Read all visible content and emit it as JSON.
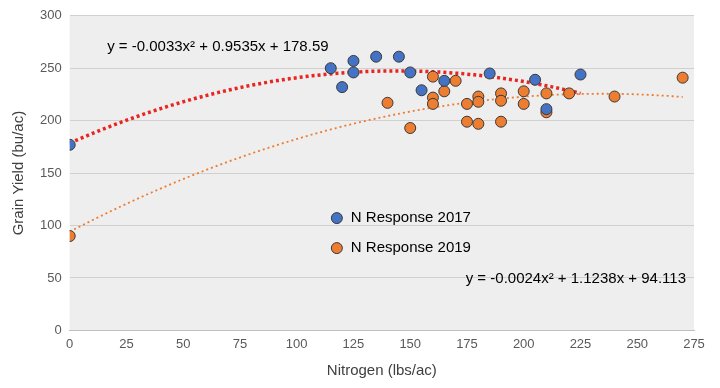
{
  "chart_data": {
    "type": "scatter",
    "x_label": "Nitrogen (lbs/ac)",
    "y_label": "Grain Yield (bu/ac)",
    "xlim": [
      0,
      275
    ],
    "xticks": [
      0,
      25,
      50,
      75,
      100,
      125,
      150,
      175,
      200,
      225,
      250,
      275
    ],
    "ylim": [
      0,
      300
    ],
    "yticks": [
      0,
      50,
      100,
      150,
      200,
      250,
      300
    ],
    "grid": "y",
    "legend": "center",
    "series": [
      {
        "name": "N Response 2017",
        "color": "#4472c4",
        "marker": "circle",
        "x": [
          0,
          115,
          120,
          125,
          125,
          135,
          145,
          150,
          155,
          165,
          185,
          205,
          210,
          225
        ],
        "values": [
          177,
          250,
          232,
          257,
          246,
          261,
          261,
          246,
          229,
          238,
          245,
          239,
          211,
          244
        ],
        "trendline": {
          "equation": "y = -0.0033x² + 0.9535x + 178.59",
          "coefficients": [
            -0.0033,
            0.9535,
            178.59
          ],
          "color": "#e8251f",
          "line_style": "dotted"
        }
      },
      {
        "name": "N Response 2019",
        "color": "#ed7d31",
        "marker": "circle",
        "x": [
          0,
          140,
          150,
          160,
          160,
          160,
          165,
          170,
          175,
          175,
          180,
          180,
          180,
          190,
          190,
          190,
          200,
          200,
          210,
          210,
          220,
          240,
          270
        ],
        "values": [
          90,
          217,
          193,
          242,
          222,
          216,
          228,
          238,
          216,
          199,
          223,
          218,
          197,
          226,
          219,
          199,
          228,
          216,
          226,
          208,
          226,
          223,
          241
        ],
        "trendline": {
          "equation": "y = -0.0024x² + 1.1238x + 94.113",
          "coefficients": [
            -0.0024,
            1.1238,
            94.113
          ],
          "color": "#ed7d31",
          "line_style": "dotted"
        }
      }
    ]
  }
}
